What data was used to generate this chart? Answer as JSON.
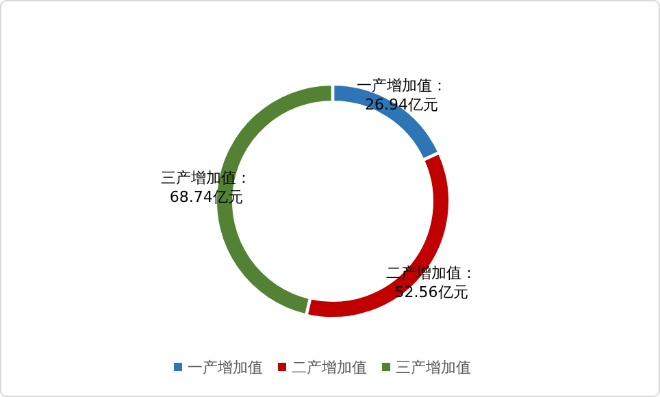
{
  "chart_data": {
    "type": "donut",
    "categories": [
      "一产增加值",
      "二产增加值",
      "三产增加值"
    ],
    "values": [
      26.94,
      52.56,
      68.74
    ],
    "colors": [
      "#2e75b6",
      "#c00000",
      "#548235"
    ],
    "value_labels": [
      "一产增加值：\n26.94亿元",
      "二产增加值：\n52.56亿元",
      "三产增加值：\n68.74亿元"
    ],
    "legend": "bottom"
  }
}
